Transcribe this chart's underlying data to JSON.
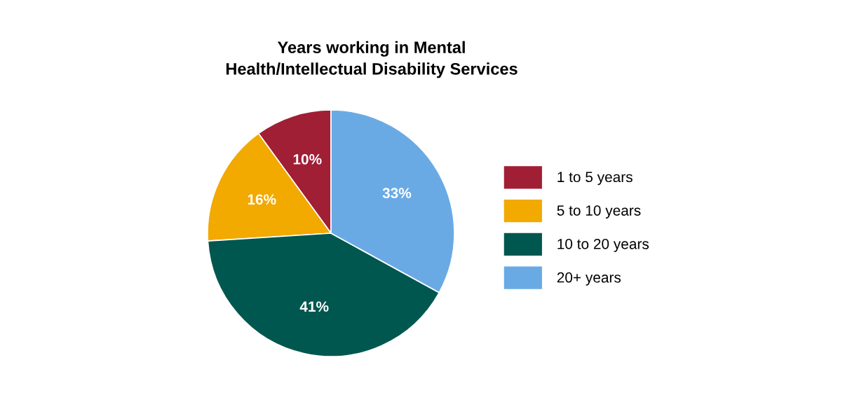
{
  "chart_data": {
    "type": "pie",
    "title": "Years working in Mental\nHealth/Intellectual Disability Services",
    "categories": [
      "1 to 5 years",
      "5 to 10 years",
      "10 to 20 years",
      "20+ years"
    ],
    "values": [
      10,
      16,
      41,
      33
    ],
    "colors": [
      "#a01f35",
      "#f2a900",
      "#00574f",
      "#6aaae4"
    ],
    "value_labels": [
      "10%",
      "16%",
      "41%",
      "33%"
    ],
    "legend": "right"
  }
}
